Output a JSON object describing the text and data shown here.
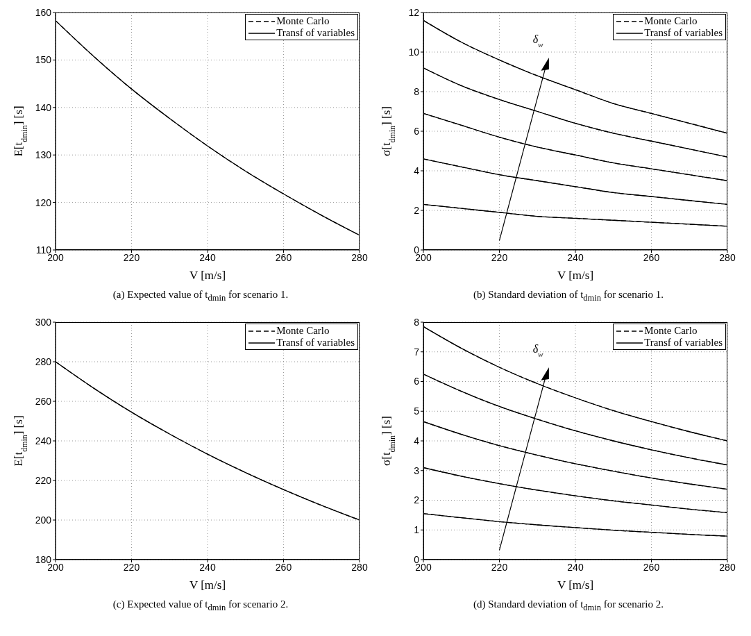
{
  "chart_data": [
    {
      "type": "line",
      "xlabel": "V [m/s]",
      "ylabel": "E[t$_{dmin}$] [s]",
      "x": [
        200,
        210,
        220,
        230,
        240,
        250,
        260,
        270,
        280
      ],
      "xlim": [
        200,
        280
      ],
      "xticks": [
        200,
        220,
        240,
        260,
        280
      ],
      "ylim": [
        110,
        160
      ],
      "yticks": [
        110,
        120,
        130,
        140,
        150,
        160
      ],
      "grid": true,
      "legend": "top right",
      "annotations": [
        "(a) Expected value of t$_{dmin}$ for scenario 1."
      ],
      "series": [
        {
          "name": "Monte Carlo",
          "color": "#000000",
          "line_style": "dashed",
          "values": [
            158.3,
            150.8,
            143.9,
            137.7,
            131.9,
            126.6,
            121.8,
            117.3,
            113.1
          ]
        },
        {
          "name": "Transf of variables",
          "color": "#000000",
          "line_style": "solid",
          "values": [
            158.3,
            150.8,
            143.9,
            137.7,
            131.9,
            126.6,
            121.8,
            117.3,
            113.1
          ]
        }
      ]
    },
    {
      "type": "line",
      "xlabel": "V [m/s]",
      "ylabel": "σ[t$_{dmin}$] [s]",
      "x": [
        200,
        210,
        220,
        230,
        240,
        250,
        260,
        270,
        280
      ],
      "xlim": [
        200,
        280
      ],
      "xticks": [
        200,
        220,
        240,
        260,
        280
      ],
      "ylim": [
        0,
        12
      ],
      "yticks": [
        0,
        2,
        4,
        6,
        8,
        10,
        12
      ],
      "grid": true,
      "legend": "top right",
      "annotations": [
        "(b) Standard deviation of t$_{dmin}$ for scenario 1.",
        "δ$_{w}$"
      ],
      "series": [
        {
          "name": "Monte Carlo",
          "color": "#000000",
          "line_style": "dashed",
          "values": [
            2.3,
            2.1,
            1.9,
            1.7,
            1.6,
            1.5,
            1.4,
            1.3,
            1.2
          ]
        },
        {
          "color": "#000000",
          "line_style": "dashed",
          "values": [
            4.6,
            4.2,
            3.8,
            3.5,
            3.2,
            2.9,
            2.7,
            2.5,
            2.3
          ]
        },
        {
          "color": "#000000",
          "line_style": "dashed",
          "values": [
            6.9,
            6.3,
            5.7,
            5.2,
            4.8,
            4.4,
            4.1,
            3.8,
            3.5
          ]
        },
        {
          "color": "#000000",
          "line_style": "dashed",
          "values": [
            9.2,
            8.3,
            7.6,
            7.0,
            6.4,
            5.9,
            5.5,
            5.1,
            4.7
          ]
        },
        {
          "color": "#000000",
          "line_style": "dashed",
          "values": [
            11.6,
            10.5,
            9.6,
            8.8,
            8.1,
            7.4,
            6.9,
            6.4,
            5.9
          ]
        },
        {
          "name": "Transf of variables",
          "color": "#000000",
          "line_style": "solid",
          "values": [
            2.3,
            2.1,
            1.9,
            1.7,
            1.6,
            1.5,
            1.4,
            1.3,
            1.2
          ]
        },
        {
          "color": "#000000",
          "line_style": "solid",
          "values": [
            4.6,
            4.2,
            3.8,
            3.5,
            3.2,
            2.9,
            2.7,
            2.5,
            2.3
          ]
        },
        {
          "color": "#000000",
          "line_style": "solid",
          "values": [
            6.9,
            6.3,
            5.7,
            5.2,
            4.8,
            4.4,
            4.1,
            3.8,
            3.5
          ]
        },
        {
          "color": "#000000",
          "line_style": "solid",
          "values": [
            9.2,
            8.3,
            7.6,
            7.0,
            6.4,
            5.9,
            5.5,
            5.1,
            4.7
          ]
        },
        {
          "color": "#000000",
          "line_style": "solid",
          "values": [
            11.6,
            10.5,
            9.6,
            8.8,
            8.1,
            7.4,
            6.9,
            6.4,
            5.9
          ]
        }
      ]
    },
    {
      "type": "line",
      "xlabel": "V [m/s]",
      "ylabel": "E[t$_{dmin}$] [s]",
      "x": [
        200,
        210,
        220,
        230,
        240,
        250,
        260,
        270,
        280
      ],
      "xlim": [
        200,
        280
      ],
      "xticks": [
        200,
        220,
        240,
        260,
        280
      ],
      "ylim": [
        180,
        300
      ],
      "yticks": [
        180,
        200,
        220,
        240,
        260,
        280,
        300
      ],
      "grid": true,
      "legend": "top right",
      "annotations": [
        "(c) Expected value of t$_{dmin}$ for scenario 2."
      ],
      "series": [
        {
          "name": "Monte Carlo",
          "color": "#000000",
          "line_style": "dashed",
          "values": [
            280,
            266.7,
            254.5,
            243.5,
            233.3,
            224,
            215.4,
            207.4,
            200
          ]
        },
        {
          "name": "Transf of variables",
          "color": "#000000",
          "line_style": "solid",
          "values": [
            280,
            266.7,
            254.5,
            243.5,
            233.3,
            224,
            215.4,
            207.4,
            200
          ]
        }
      ]
    },
    {
      "type": "line",
      "xlabel": "V [m/s]",
      "ylabel": "σ[t$_{dmin}$] [s]",
      "x": [
        200,
        210,
        220,
        230,
        240,
        250,
        260,
        270,
        280
      ],
      "xlim": [
        200,
        280
      ],
      "xticks": [
        200,
        220,
        240,
        260,
        280
      ],
      "ylim": [
        0,
        8
      ],
      "yticks": [
        0,
        1,
        2,
        3,
        4,
        5,
        6,
        7,
        8
      ],
      "grid": true,
      "legend": "top right",
      "annotations": [
        "(d) Standard deviation of t$_{dmin}$ for scenario 2.",
        "δ$_{w}$"
      ],
      "series": [
        {
          "name": "Monte Carlo",
          "color": "#000000",
          "line_style": "dashed",
          "values": [
            1.55,
            1.41,
            1.28,
            1.17,
            1.08,
            0.99,
            0.92,
            0.85,
            0.79
          ]
        },
        {
          "color": "#000000",
          "line_style": "dashed",
          "values": [
            3.1,
            2.81,
            2.56,
            2.34,
            2.15,
            1.98,
            1.84,
            1.7,
            1.58
          ]
        },
        {
          "color": "#000000",
          "line_style": "dashed",
          "values": [
            4.65,
            4.22,
            3.84,
            3.52,
            3.23,
            2.98,
            2.75,
            2.55,
            2.37
          ]
        },
        {
          "color": "#000000",
          "line_style": "dashed",
          "values": [
            6.25,
            5.67,
            5.16,
            4.73,
            4.34,
            4.0,
            3.7,
            3.43,
            3.19
          ]
        },
        {
          "color": "#000000",
          "line_style": "dashed",
          "values": [
            7.85,
            7.12,
            6.48,
            5.93,
            5.45,
            5.02,
            4.65,
            4.31,
            4.0
          ]
        },
        {
          "name": "Transf of variables",
          "color": "#000000",
          "line_style": "solid",
          "values": [
            1.55,
            1.41,
            1.28,
            1.17,
            1.08,
            0.99,
            0.92,
            0.85,
            0.79
          ]
        },
        {
          "color": "#000000",
          "line_style": "solid",
          "values": [
            3.1,
            2.81,
            2.56,
            2.34,
            2.15,
            1.98,
            1.84,
            1.7,
            1.58
          ]
        },
        {
          "color": "#000000",
          "line_style": "solid",
          "values": [
            4.65,
            4.22,
            3.84,
            3.52,
            3.23,
            2.98,
            2.75,
            2.55,
            2.37
          ]
        },
        {
          "color": "#000000",
          "line_style": "solid",
          "values": [
            6.25,
            5.67,
            5.16,
            4.73,
            4.34,
            4.0,
            3.7,
            3.43,
            3.19
          ]
        },
        {
          "color": "#000000",
          "line_style": "solid",
          "values": [
            7.85,
            7.12,
            6.48,
            5.93,
            5.45,
            5.02,
            4.65,
            4.31,
            4.0
          ]
        }
      ]
    }
  ]
}
